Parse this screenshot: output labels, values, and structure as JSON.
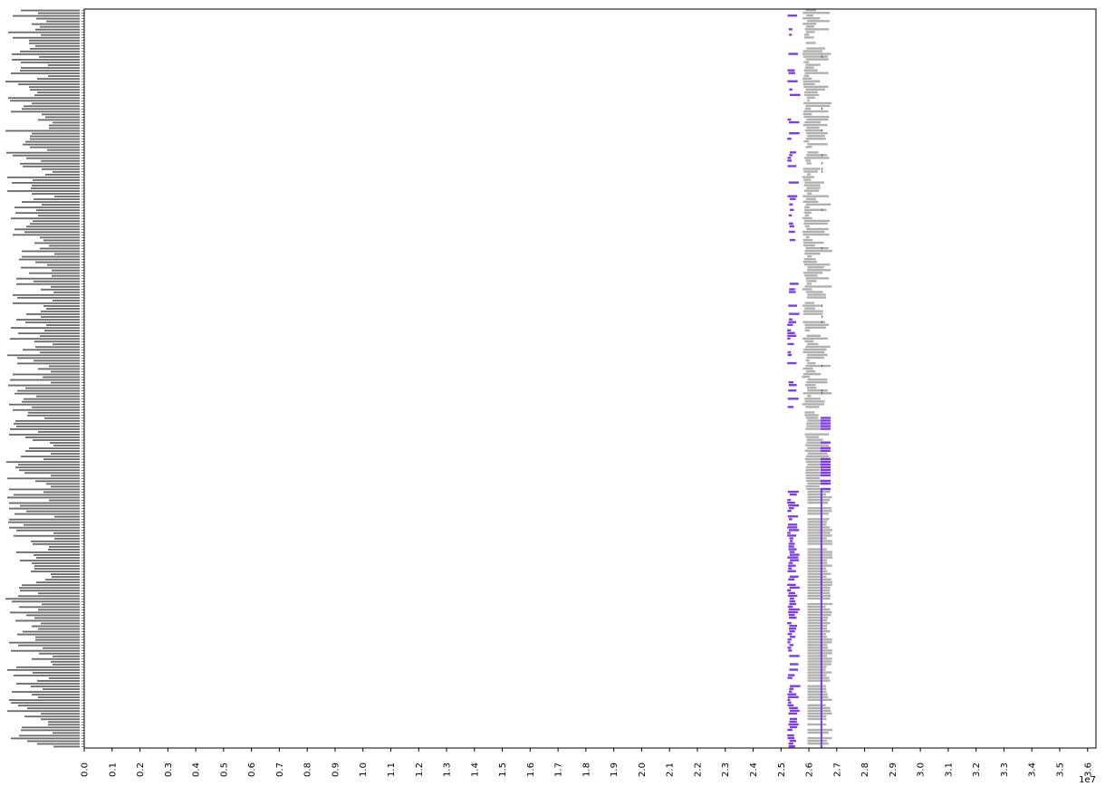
{
  "chart_data": {
    "type": "bar",
    "subtype": "horizontal-interval",
    "title": "",
    "xlabel": "",
    "ylabel": "",
    "x_offset_label": "1e7",
    "xlim": [
      0.0,
      3.63
    ],
    "x_ticks": [
      "0.0",
      "0.1",
      "0.2",
      "0.3",
      "0.4",
      "0.5",
      "0.6",
      "0.7",
      "0.8",
      "0.9",
      "1.0",
      "1.1",
      "1.2",
      "1.3",
      "1.4",
      "1.5",
      "1.6",
      "1.7",
      "1.8",
      "1.9",
      "2.0",
      "2.1",
      "2.2",
      "2.3",
      "2.4",
      "2.5",
      "2.6",
      "2.7",
      "2.8",
      "2.9",
      "3.0",
      "3.1",
      "3.2",
      "3.3",
      "3.4",
      "3.5",
      "3.6"
    ],
    "x_tick_rotation": "vertical",
    "grid": false,
    "legend": "none",
    "row_count": 270,
    "colors": {
      "gray": "#b0b0b0",
      "purple": "#7b3fe0",
      "axis": "#000000"
    },
    "y_tick_labels": "unreadable (too small)",
    "series_x_ranges_approx": {
      "gray_bars": [
        2.58,
        2.72
      ],
      "purple_left_cluster": [
        2.52,
        2.57
      ],
      "purple_right_cluster": [
        2.64,
        2.68
      ],
      "purple_vertical_line": 2.645
    }
  }
}
